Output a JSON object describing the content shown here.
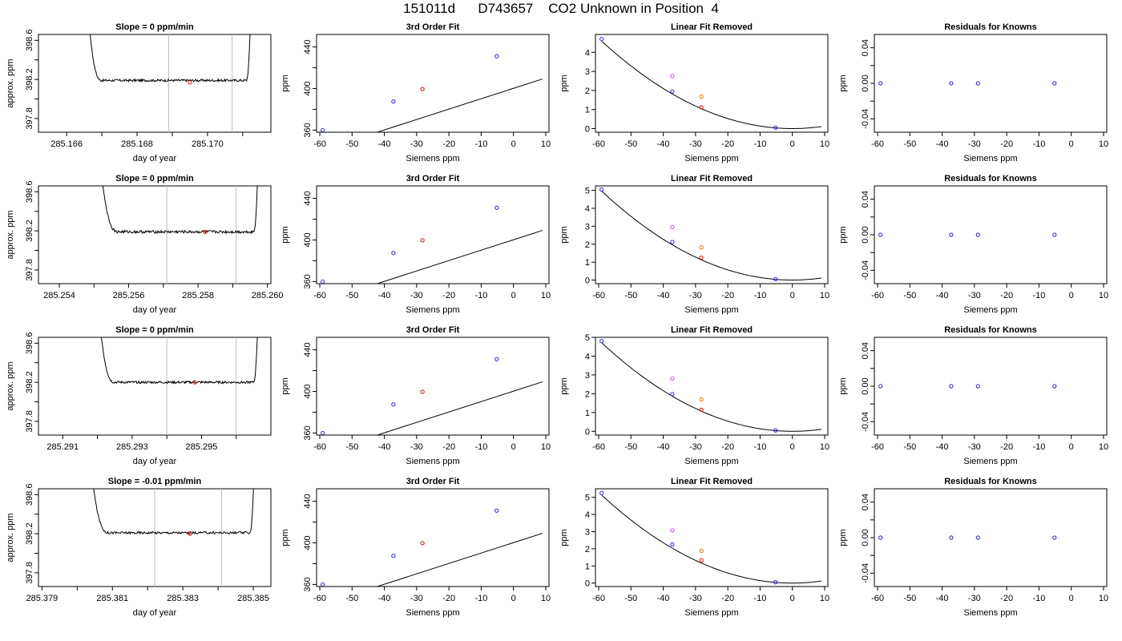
{
  "figure": {
    "title": "151011d      D743657    CO2 Unknown in Position  4"
  },
  "colors": {
    "known": "#1f1fff",
    "unknown_raw": "#cc44ff",
    "unknown_fit": "#ff6a00",
    "unknown": "#ff0000",
    "line": "#000000",
    "vline": "#bdbdbd"
  },
  "chart_data": [
    {
      "type": "line",
      "row": 1,
      "panel": "time-series",
      "title": "Slope =  0  ppm/min",
      "xlabel": "day of year",
      "ylabel": "approx. ppm",
      "xlim": [
        285.1652,
        285.1718
      ],
      "ylim": [
        397.66,
        398.66
      ],
      "xticks": [
        285.166,
        285.167,
        285.168,
        285.169,
        285.17,
        285.171
      ],
      "xtick_labels": [
        "285.166",
        "",
        "285.168",
        "",
        "285.170",
        ""
      ],
      "yticks": [
        397.8,
        398.0,
        398.2,
        398.4,
        398.6
      ],
      "ytick_labels": [
        "397.8",
        "",
        "398.2",
        "",
        "398.6"
      ],
      "start": 285.1664,
      "end": 285.1713,
      "flat_start": 285.167,
      "flat_end": 285.1711,
      "level": 398.19,
      "noise": 0.012,
      "vlines": [
        285.1689,
        285.1707
      ],
      "point": {
        "x": 285.1695,
        "y": 398.17
      }
    },
    {
      "type": "line",
      "row": 1,
      "panel": "fit",
      "title": "3rd Order Fit",
      "xlabel": "Siemens ppm",
      "ylabel": "ppm",
      "xlim": [
        -61,
        11
      ],
      "ylim": [
        358,
        452
      ],
      "xticks": [
        -60,
        -50,
        -40,
        -30,
        -20,
        -10,
        0,
        10
      ],
      "yticks": [
        360,
        380,
        400,
        420,
        440
      ],
      "ytick_labels": [
        "360",
        "",
        "400",
        "",
        "440"
      ],
      "curve": {
        "intercept": 400.2,
        "slope": 1.0,
        "x": [
          -59.5,
          9
        ]
      },
      "knowns": [
        {
          "x": -59.1,
          "y": 359.9
        },
        {
          "x": -37.2,
          "y": 387.5
        },
        {
          "x": -5.2,
          "y": 431.0
        }
      ],
      "unknown": {
        "x": -28.2,
        "y": 399.5
      }
    },
    {
      "type": "scatter",
      "row": 1,
      "panel": "linear-removed",
      "title": "Linear Fit Removed",
      "xlabel": "Siemens ppm",
      "ylabel": "ppm",
      "xlim": [
        -61,
        11
      ],
      "ylim": [
        -0.19,
        4.94
      ],
      "xticks": [
        -60,
        -50,
        -40,
        -30,
        -20,
        -10,
        0,
        10
      ],
      "yticks": [
        0,
        1,
        2,
        3,
        4
      ],
      "quad_a": 0.001315,
      "curve_x": [
        -59,
        9
      ],
      "knowns": [
        {
          "x": -59.1,
          "y": 4.7
        },
        {
          "x": -37.2,
          "y": 1.95
        },
        {
          "x": -5.2,
          "y": 0.05
        }
      ],
      "unknown_raw": {
        "x": -37.2,
        "y": 2.75
      },
      "unknown_fit": {
        "x": -28.2,
        "y": 1.68
      },
      "unknown": {
        "x": -28.2,
        "y": 1.12
      }
    },
    {
      "type": "scatter",
      "row": 1,
      "panel": "residuals",
      "title": "Residuals for Knowns",
      "xlabel": "Siemens ppm",
      "ylabel": "ppm",
      "xlim": [
        -61,
        11
      ],
      "ylim": [
        -0.055,
        0.055
      ],
      "xticks": [
        -60,
        -50,
        -40,
        -30,
        -20,
        -10,
        0,
        10
      ],
      "yticks": [
        -0.04,
        -0.02,
        0,
        0.02,
        0.04
      ],
      "ytick_labels": [
        "-0.04",
        "",
        "0.00",
        "",
        "0.04"
      ],
      "points": [
        {
          "x": -59.1,
          "y": 0
        },
        {
          "x": -37.2,
          "y": 0
        },
        {
          "x": -28.9,
          "y": 0
        },
        {
          "x": -5.2,
          "y": 0
        }
      ]
    },
    {
      "type": "line",
      "row": 2,
      "panel": "time-series",
      "title": "Slope =  0  ppm/min",
      "xlabel": "day of year",
      "ylabel": "approx. ppm",
      "xlim": [
        285.2534,
        285.2601
      ],
      "ylim": [
        397.66,
        398.66
      ],
      "xticks": [
        285.254,
        285.255,
        285.256,
        285.257,
        285.258,
        285.259,
        285.26
      ],
      "xtick_labels": [
        "285.254",
        "",
        "285.256",
        "",
        "285.258",
        "",
        "285.260"
      ],
      "yticks": [
        397.8,
        398.0,
        398.2,
        398.4,
        398.6
      ],
      "ytick_labels": [
        "397.8",
        "",
        "398.2",
        "",
        "398.6"
      ],
      "start": 285.2549,
      "end": 285.2598,
      "flat_start": 285.2557,
      "flat_end": 285.2596,
      "level": 398.19,
      "noise": 0.014,
      "vlines": [
        285.2571,
        285.2591
      ],
      "point": {
        "x": 285.2582,
        "y": 398.19
      }
    },
    {
      "type": "line",
      "row": 2,
      "panel": "fit",
      "title": "3rd Order Fit",
      "xlabel": "Siemens ppm",
      "ylabel": "ppm",
      "xlim": [
        -61,
        11
      ],
      "ylim": [
        358,
        452
      ],
      "xticks": [
        -60,
        -50,
        -40,
        -30,
        -20,
        -10,
        0,
        10
      ],
      "yticks": [
        360,
        380,
        400,
        420,
        440
      ],
      "ytick_labels": [
        "360",
        "",
        "400",
        "",
        "440"
      ],
      "curve": {
        "intercept": 400.2,
        "slope": 1.0,
        "x": [
          -59.5,
          9
        ]
      },
      "knowns": [
        {
          "x": -59.1,
          "y": 359.9
        },
        {
          "x": -37.2,
          "y": 387.5
        },
        {
          "x": -5.2,
          "y": 431.0
        }
      ],
      "unknown": {
        "x": -28.2,
        "y": 399.7
      }
    },
    {
      "type": "scatter",
      "row": 2,
      "panel": "linear-removed",
      "title": "Linear Fit Removed",
      "xlabel": "Siemens ppm",
      "ylabel": "ppm",
      "xlim": [
        -61,
        11
      ],
      "ylim": [
        -0.2,
        5.25
      ],
      "xticks": [
        -60,
        -50,
        -40,
        -30,
        -20,
        -10,
        0,
        10
      ],
      "yticks": [
        0,
        1,
        2,
        3,
        4,
        5
      ],
      "quad_a": 0.00142,
      "curve_x": [
        -59,
        9
      ],
      "knowns": [
        {
          "x": -59.1,
          "y": 5.05
        },
        {
          "x": -37.2,
          "y": 2.12
        },
        {
          "x": -5.2,
          "y": 0.05
        }
      ],
      "unknown_raw": {
        "x": -37.2,
        "y": 2.96
      },
      "unknown_fit": {
        "x": -28.2,
        "y": 1.82
      },
      "unknown": {
        "x": -28.2,
        "y": 1.25
      }
    },
    {
      "type": "scatter",
      "row": 2,
      "panel": "residuals",
      "title": "Residuals for Knowns",
      "xlabel": "Siemens ppm",
      "ylabel": "ppm",
      "xlim": [
        -61,
        11
      ],
      "ylim": [
        -0.055,
        0.055
      ],
      "xticks": [
        -60,
        -50,
        -40,
        -30,
        -20,
        -10,
        0,
        10
      ],
      "yticks": [
        -0.04,
        -0.02,
        0,
        0.02,
        0.04
      ],
      "ytick_labels": [
        "-0.04",
        "",
        "0.00",
        "",
        "0.04"
      ],
      "points": [
        {
          "x": -59.1,
          "y": 0
        },
        {
          "x": -37.2,
          "y": 0
        },
        {
          "x": -28.9,
          "y": 0
        },
        {
          "x": -5.2,
          "y": 0
        }
      ]
    },
    {
      "type": "line",
      "row": 3,
      "panel": "time-series",
      "title": "Slope =  0  ppm/min",
      "xlabel": "day of year",
      "ylabel": "approx. ppm",
      "xlim": [
        285.2903,
        285.297
      ],
      "ylim": [
        397.66,
        398.66
      ],
      "xticks": [
        285.291,
        285.292,
        285.293,
        285.294,
        285.295,
        285.296
      ],
      "xtick_labels": [
        "285.291",
        "",
        "285.293",
        "",
        "285.295",
        ""
      ],
      "yticks": [
        397.8,
        398.0,
        398.2,
        398.4,
        398.6
      ],
      "ytick_labels": [
        "397.8",
        "",
        "398.2",
        "",
        "398.6"
      ],
      "start": 285.2918,
      "end": 285.2967,
      "flat_start": 285.2925,
      "flat_end": 285.2965,
      "level": 398.2,
      "noise": 0.012,
      "vlines": [
        285.294,
        285.296
      ],
      "point": {
        "x": 285.2948,
        "y": 398.2
      }
    },
    {
      "type": "line",
      "row": 3,
      "panel": "fit",
      "title": "3rd Order Fit",
      "xlabel": "Siemens ppm",
      "ylabel": "ppm",
      "xlim": [
        -61,
        11
      ],
      "ylim": [
        358,
        452
      ],
      "xticks": [
        -60,
        -50,
        -40,
        -30,
        -20,
        -10,
        0,
        10
      ],
      "yticks": [
        360,
        380,
        400,
        420,
        440
      ],
      "ytick_labels": [
        "360",
        "",
        "400",
        "",
        "440"
      ],
      "curve": {
        "intercept": 400.2,
        "slope": 1.0,
        "x": [
          -59.5,
          9
        ]
      },
      "knowns": [
        {
          "x": -59.1,
          "y": 359.9
        },
        {
          "x": -37.2,
          "y": 387.5
        },
        {
          "x": -5.2,
          "y": 431.0
        }
      ],
      "unknown": {
        "x": -28.2,
        "y": 399.6
      }
    },
    {
      "type": "scatter",
      "row": 3,
      "panel": "linear-removed",
      "title": "Linear Fit Removed",
      "xlabel": "Siemens ppm",
      "ylabel": "ppm",
      "xlim": [
        -61,
        11
      ],
      "ylim": [
        -0.2,
        5.0
      ],
      "xticks": [
        -60,
        -50,
        -40,
        -30,
        -20,
        -10,
        0,
        10
      ],
      "yticks": [
        0,
        1,
        2,
        3,
        4,
        5
      ],
      "quad_a": 0.00135,
      "curve_x": [
        -59,
        9
      ],
      "knowns": [
        {
          "x": -59.1,
          "y": 4.8
        },
        {
          "x": -37.2,
          "y": 1.98
        },
        {
          "x": -5.2,
          "y": 0.05
        }
      ],
      "unknown_raw": {
        "x": -37.2,
        "y": 2.8
      },
      "unknown_fit": {
        "x": -28.2,
        "y": 1.7
      },
      "unknown": {
        "x": -28.2,
        "y": 1.15
      }
    },
    {
      "type": "scatter",
      "row": 3,
      "panel": "residuals",
      "title": "Residuals for Knowns",
      "xlabel": "Siemens ppm",
      "ylabel": "ppm",
      "xlim": [
        -61,
        11
      ],
      "ylim": [
        -0.055,
        0.055
      ],
      "xticks": [
        -60,
        -50,
        -40,
        -30,
        -20,
        -10,
        0,
        10
      ],
      "yticks": [
        -0.04,
        -0.02,
        0,
        0.02,
        0.04
      ],
      "ytick_labels": [
        "-0.04",
        "",
        "0.00",
        "",
        "0.04"
      ],
      "points": [
        {
          "x": -59.1,
          "y": 0
        },
        {
          "x": -37.2,
          "y": 0
        },
        {
          "x": -28.9,
          "y": 0
        },
        {
          "x": -5.2,
          "y": 0
        }
      ]
    },
    {
      "type": "line",
      "row": 4,
      "panel": "time-series",
      "title": "Slope =  -0.01  ppm/min",
      "xlabel": "day of year",
      "ylabel": "approx. ppm",
      "xlim": [
        285.3789,
        285.3855
      ],
      "ylim": [
        397.66,
        398.66
      ],
      "xticks": [
        285.379,
        285.38,
        285.381,
        285.382,
        285.383,
        285.384,
        285.385
      ],
      "xtick_labels": [
        "285.379",
        "",
        "285.381",
        "",
        "285.383",
        "",
        "285.385"
      ],
      "yticks": [
        397.8,
        398.0,
        398.2,
        398.4,
        398.6
      ],
      "ytick_labels": [
        "397.8",
        "",
        "398.2",
        "",
        "398.6"
      ],
      "start": 285.3801,
      "end": 285.3851,
      "flat_start": 285.3809,
      "flat_end": 285.3849,
      "level": 398.21,
      "noise": 0.012,
      "vlines": [
        285.3822,
        285.3841
      ],
      "point": {
        "x": 285.3832,
        "y": 398.2
      }
    },
    {
      "type": "line",
      "row": 4,
      "panel": "fit",
      "title": "3rd Order Fit",
      "xlabel": "Siemens ppm",
      "ylabel": "ppm",
      "xlim": [
        -61,
        11
      ],
      "ylim": [
        358,
        452
      ],
      "xticks": [
        -60,
        -50,
        -40,
        -30,
        -20,
        -10,
        0,
        10
      ],
      "yticks": [
        360,
        380,
        400,
        420,
        440
      ],
      "ytick_labels": [
        "360",
        "",
        "400",
        "",
        "440"
      ],
      "curve": {
        "intercept": 400.2,
        "slope": 1.0,
        "x": [
          -59.5,
          9
        ]
      },
      "knowns": [
        {
          "x": -59.1,
          "y": 359.9
        },
        {
          "x": -37.2,
          "y": 387.5
        },
        {
          "x": -5.2,
          "y": 431.0
        }
      ],
      "unknown": {
        "x": -28.2,
        "y": 399.7
      }
    },
    {
      "type": "scatter",
      "row": 4,
      "panel": "linear-removed",
      "title": "Linear Fit Removed",
      "xlabel": "Siemens ppm",
      "ylabel": "ppm",
      "xlim": [
        -61,
        11
      ],
      "ylim": [
        -0.2,
        5.5
      ],
      "xticks": [
        -60,
        -50,
        -40,
        -30,
        -20,
        -10,
        0,
        10
      ],
      "yticks": [
        0,
        1,
        2,
        3,
        4,
        5
      ],
      "quad_a": 0.00147,
      "curve_x": [
        -59,
        9
      ],
      "knowns": [
        {
          "x": -59.1,
          "y": 5.25
        },
        {
          "x": -37.2,
          "y": 2.25
        },
        {
          "x": -5.2,
          "y": 0.05
        }
      ],
      "unknown_raw": {
        "x": -37.2,
        "y": 3.08
      },
      "unknown_fit": {
        "x": -28.2,
        "y": 1.88
      },
      "unknown": {
        "x": -28.2,
        "y": 1.33
      }
    },
    {
      "type": "scatter",
      "row": 4,
      "panel": "residuals",
      "title": "Residuals for Knowns",
      "xlabel": "Siemens ppm",
      "ylabel": "ppm",
      "xlim": [
        -61,
        11
      ],
      "ylim": [
        -0.055,
        0.055
      ],
      "xticks": [
        -60,
        -50,
        -40,
        -30,
        -20,
        -10,
        0,
        10
      ],
      "yticks": [
        -0.04,
        -0.02,
        0,
        0.02,
        0.04
      ],
      "ytick_labels": [
        "-0.04",
        "",
        "0.00",
        "",
        "0.04"
      ],
      "points": [
        {
          "x": -59.1,
          "y": 0
        },
        {
          "x": -37.2,
          "y": 0
        },
        {
          "x": -28.9,
          "y": 0
        },
        {
          "x": -5.2,
          "y": 0
        }
      ]
    }
  ]
}
